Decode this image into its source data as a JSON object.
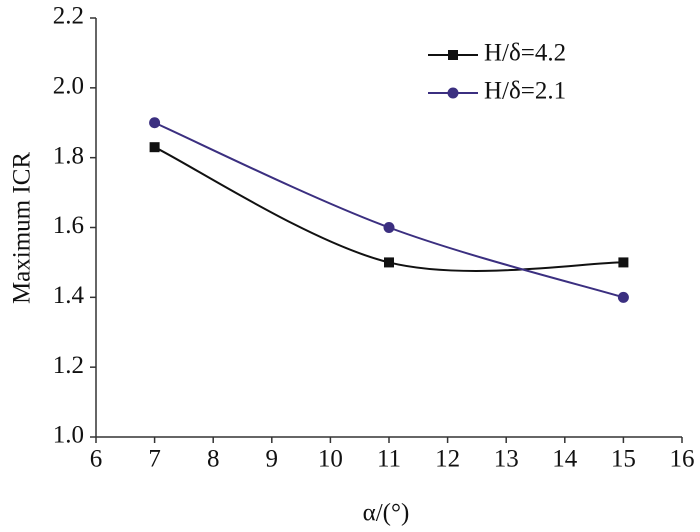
{
  "chart_data": {
    "type": "line",
    "x_label": "α/(°)",
    "y_label": "Maximum ICR",
    "x": [
      7,
      11,
      15
    ],
    "series": [
      {
        "name": "H/δ=4.2",
        "color": "#111111",
        "marker": "square",
        "values": [
          1.83,
          1.5,
          1.5
        ]
      },
      {
        "name": "H/δ=2.1",
        "color": "#3b2f80",
        "marker": "circle",
        "values": [
          1.9,
          1.6,
          1.4
        ]
      }
    ],
    "xlim": [
      6,
      16
    ],
    "xticks": [
      6,
      7,
      8,
      9,
      10,
      11,
      12,
      13,
      14,
      15,
      16
    ],
    "ylim": [
      1,
      2.2
    ],
    "yticks": [
      {
        "value": 1,
        "label": "1.0"
      },
      1.2,
      1.4,
      1.6,
      1.8,
      {
        "value": 2,
        "label": "2.0"
      },
      2.2
    ],
    "legend": "upper-right"
  }
}
